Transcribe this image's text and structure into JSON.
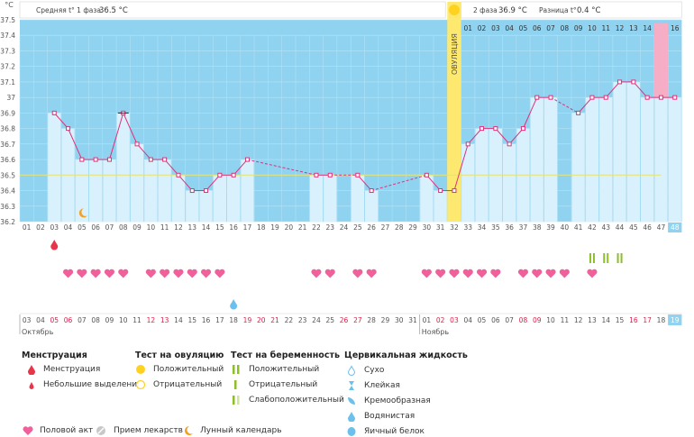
{
  "chart_data": {
    "type": "line",
    "title": "",
    "ylabel": "°C",
    "ylim": [
      36.2,
      37.5
    ],
    "y_ticks": [
      "36.2",
      "36.3",
      "36.4",
      "36.5",
      "36.6",
      "36.7",
      "36.8",
      "36.9",
      "37",
      "37.1",
      "37.2",
      "37.3",
      "37.4",
      "37.5"
    ],
    "coverline": 36.5,
    "header": {
      "phase1_label": "Средняя t° 1 фаза",
      "phase1_value": "36.5 °C",
      "phase2_label": "2 фаза",
      "phase2_value": "36.9 °C",
      "diff_label": "Разница t°",
      "diff_value": "0.4 °C"
    },
    "ovulation_label": "ОВУЛЯЦИЯ",
    "ovulation_day": 32,
    "highlight_day": 47,
    "days": [
      "01",
      "02",
      "03",
      "04",
      "05",
      "06",
      "07",
      "08",
      "09",
      "10",
      "11",
      "12",
      "13",
      "14",
      "15",
      "16",
      "17",
      "18",
      "19",
      "20",
      "21",
      "22",
      "23",
      "24",
      "25",
      "26",
      "27",
      "28",
      "29",
      "30",
      "31",
      "32",
      "33",
      "34",
      "35",
      "36",
      "37",
      "38",
      "39",
      "40",
      "41",
      "42",
      "43",
      "44",
      "45",
      "46",
      "47",
      "48"
    ],
    "phase2_days": [
      "01",
      "02",
      "03",
      "04",
      "05",
      "06",
      "07",
      "08",
      "09",
      "10",
      "11",
      "12",
      "13",
      "14",
      "15",
      "16"
    ],
    "temperatures": [
      null,
      null,
      36.9,
      36.8,
      36.6,
      36.6,
      36.6,
      36.9,
      36.7,
      36.6,
      36.6,
      36.5,
      36.4,
      36.4,
      36.5,
      36.5,
      36.6,
      null,
      null,
      null,
      null,
      36.5,
      36.5,
      null,
      36.5,
      36.4,
      null,
      null,
      null,
      36.5,
      36.4,
      36.4,
      36.7,
      36.8,
      36.8,
      36.7,
      36.8,
      37.0,
      37.0,
      null,
      36.9,
      37.0,
      37.0,
      37.1,
      37.1,
      37.0,
      37.0,
      37.0
    ],
    "dates": [
      "03",
      "04",
      "05",
      "06",
      "07",
      "08",
      "09",
      "10",
      "11",
      "12",
      "13",
      "14",
      "15",
      "16",
      "17",
      "18",
      "19",
      "20",
      "21",
      "22",
      "23",
      "24",
      "25",
      "26",
      "27",
      "28",
      "29",
      "30",
      "31",
      "01",
      "02",
      "03",
      "04",
      "05",
      "06",
      "07",
      "08",
      "09",
      "10",
      "11",
      "12",
      "13",
      "14",
      "15",
      "16",
      "17",
      "18",
      "19"
    ],
    "weekend_dates": [
      3,
      4,
      10,
      11,
      17,
      18,
      19,
      24,
      25,
      31,
      32,
      37,
      38,
      45,
      46
    ],
    "months": [
      "Октябрь",
      "Ноябрь"
    ],
    "menstruation_days": [
      3
    ],
    "intercourse_days": [
      4,
      5,
      6,
      7,
      8,
      10,
      11,
      12,
      13,
      14,
      15,
      22,
      23,
      25,
      26,
      30,
      31,
      32,
      33,
      34,
      35,
      37,
      38,
      39,
      40,
      42
    ],
    "mucus_watery_days": [
      16
    ],
    "pregnancy_test_positive_days": [
      42,
      43,
      44
    ],
    "moon_day": 5
  },
  "legend": {
    "menstruation": {
      "title": "Менструация",
      "items": [
        "Менструация",
        "Небольшие выделения"
      ]
    },
    "ovulation_test": {
      "title": "Тест на овуляцию",
      "items": [
        "Положительный",
        "Отрицательный"
      ]
    },
    "pregnancy_test": {
      "title": "Тест на беременность",
      "items": [
        "Положительный",
        "Отрицательный",
        "Слабоположительный"
      ]
    },
    "cervical": {
      "title": "Цервикальная жидкость",
      "items": [
        "Сухо",
        "Клейкая",
        "Кремообразная",
        "Водянистая",
        "Яичный белок"
      ]
    },
    "bottom": [
      "Половой акт",
      "Прием лекарств",
      "Лунный календарь"
    ]
  },
  "colors": {
    "band_blue": "#8fd3f0",
    "bar_fill": "#d8f1fc",
    "line": "#e0307a",
    "ovulation": "#fff39b",
    "ovulation_bar": "#fde970",
    "highlight": "#f6aec7",
    "coverline": "#e8e36a",
    "heart": "#f0609a",
    "drop_red": "#e8354a",
    "test_green": "#8cbf2a",
    "drop_blue": "#6cc0ec",
    "weekend": "#e0204a"
  }
}
